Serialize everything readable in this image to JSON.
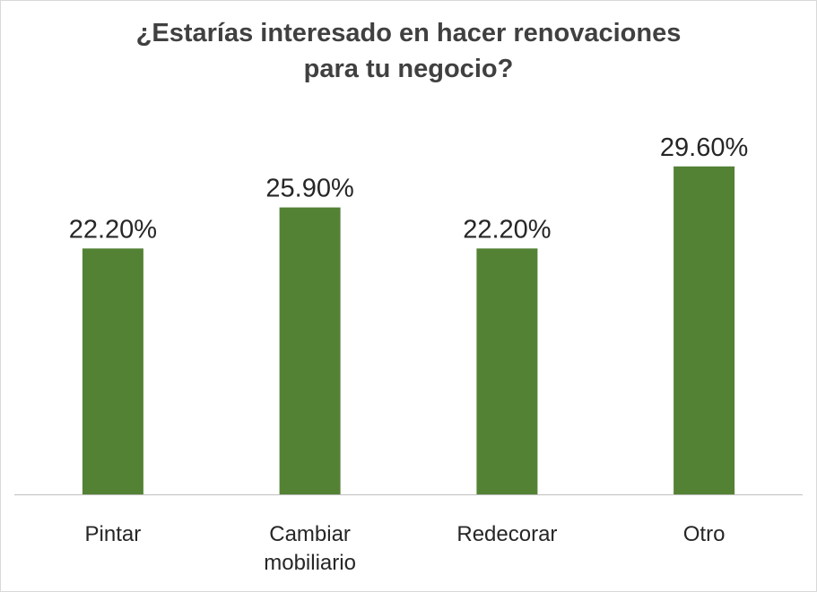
{
  "chart_data": {
    "type": "bar",
    "title_lines": [
      "¿Estarías interesado en hacer renovaciones",
      "para tu negocio?"
    ],
    "categories": [
      [
        "Pintar"
      ],
      [
        "Cambiar",
        "mobiliario"
      ],
      [
        "Redecorar"
      ],
      [
        "Otro"
      ]
    ],
    "values": [
      22.2,
      25.9,
      22.2,
      29.6
    ],
    "data_labels": [
      "22.20%",
      "25.90%",
      "22.20%",
      "29.60%"
    ],
    "unit": "%",
    "ylim": [
      0,
      32
    ],
    "grid": false,
    "legend": "none",
    "bar_color": "#548235",
    "axis_color": "#bfbfbf"
  }
}
